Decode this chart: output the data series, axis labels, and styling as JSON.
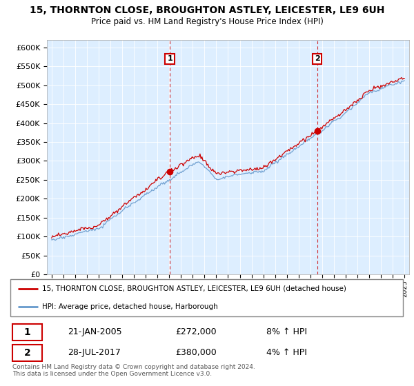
{
  "title": "15, THORNTON CLOSE, BROUGHTON ASTLEY, LEICESTER, LE9 6UH",
  "subtitle": "Price paid vs. HM Land Registry's House Price Index (HPI)",
  "legend_line1": "15, THORNTON CLOSE, BROUGHTON ASTLEY, LEICESTER, LE9 6UH (detached house)",
  "legend_line2": "HPI: Average price, detached house, Harborough",
  "sale1_date": "21-JAN-2005",
  "sale1_price": "£272,000",
  "sale1_hpi": "8% ↑ HPI",
  "sale2_date": "28-JUL-2017",
  "sale2_price": "£380,000",
  "sale2_hpi": "4% ↑ HPI",
  "footer": "Contains HM Land Registry data © Crown copyright and database right 2024.\nThis data is licensed under the Open Government Licence v3.0.",
  "red_color": "#cc0000",
  "blue_color": "#6699cc",
  "vline_color": "#cc0000",
  "grid_color": "#ffffff",
  "bg_color": "#ddeeff",
  "ylim": [
    0,
    620000
  ],
  "yticks": [
    0,
    50000,
    100000,
    150000,
    200000,
    250000,
    300000,
    350000,
    400000,
    450000,
    500000,
    550000,
    600000
  ],
  "sale1_x": 2005.05,
  "sale1_y": 272000,
  "sale2_x": 2017.57,
  "sale2_y": 380000,
  "xlim_left": 1994.6,
  "xlim_right": 2025.4
}
